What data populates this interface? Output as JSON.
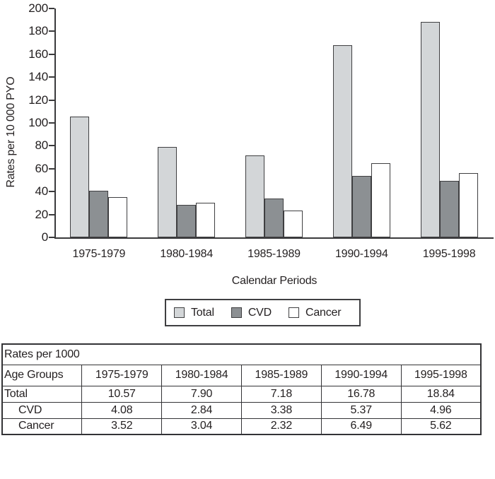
{
  "chart_data": {
    "type": "bar",
    "title": "",
    "xlabel": "Calendar Periods",
    "ylabel": "Rates per 10 000 PYO",
    "categories": [
      "1975-1979",
      "1980-1984",
      "1985-1989",
      "1990-1994",
      "1995-1998"
    ],
    "series": [
      {
        "name": "Total",
        "color": "#d3d6d8",
        "values": [
          105.7,
          79.0,
          71.8,
          167.8,
          188.4
        ]
      },
      {
        "name": "CVD",
        "color": "#8c9093",
        "values": [
          40.8,
          28.4,
          33.8,
          53.7,
          49.6
        ]
      },
      {
        "name": "Cancer",
        "color": "#ffffff",
        "values": [
          35.2,
          30.4,
          23.2,
          64.9,
          56.2
        ]
      }
    ],
    "ylim": [
      0,
      200
    ],
    "yticks": [
      0,
      20,
      40,
      60,
      80,
      100,
      120,
      140,
      160,
      180,
      200
    ],
    "grid": false,
    "legend_position": "bottom",
    "axis_color": "#3a3a3c",
    "bar_border_color": "#3f3f41"
  },
  "table": {
    "title": "Rates per 1000",
    "header": [
      "Age Groups",
      "1975-1979",
      "1980-1984",
      "1985-1989",
      "1990-1994",
      "1995-1998"
    ],
    "rows": [
      {
        "label": "Total",
        "indent": false,
        "values": [
          "10.57",
          "7.90",
          "7.18",
          "16.78",
          "18.84"
        ]
      },
      {
        "label": "CVD",
        "indent": true,
        "values": [
          "4.08",
          "2.84",
          "3.38",
          "5.37",
          "4.96"
        ]
      },
      {
        "label": "Cancer",
        "indent": true,
        "values": [
          "3.52",
          "3.04",
          "2.32",
          "6.49",
          "5.62"
        ]
      }
    ]
  }
}
